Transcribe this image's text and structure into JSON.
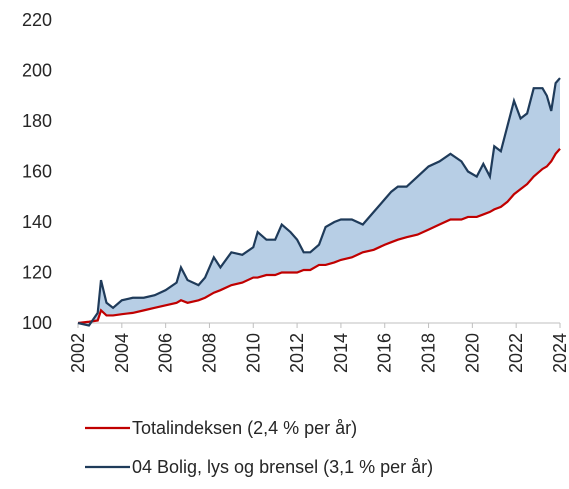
{
  "chart_data": {
    "type": "line",
    "x": [
      2002,
      2002.5,
      2002.9,
      2003.05,
      2003.3,
      2003.6,
      2004,
      2004.5,
      2005,
      2005.5,
      2006,
      2006.5,
      2006.7,
      2007,
      2007.5,
      2007.8,
      2008.2,
      2008.5,
      2009,
      2009.5,
      2010,
      2010.2,
      2010.6,
      2011,
      2011.3,
      2011.7,
      2012,
      2012.3,
      2012.6,
      2013,
      2013.3,
      2013.7,
      2014,
      2014.5,
      2015,
      2015.5,
      2016,
      2016.3,
      2016.6,
      2017,
      2017.5,
      2018,
      2018.5,
      2019,
      2019.5,
      2019.8,
      2020.2,
      2020.5,
      2020.8,
      2021,
      2021.3,
      2021.6,
      2021.9,
      2022.2,
      2022.5,
      2022.8,
      2023.2,
      2023.4,
      2023.6,
      2023.8,
      2024
    ],
    "series": [
      {
        "name": "Totalindeksen (2,4 % per år)",
        "color": "#c00000",
        "values": [
          100,
          100.5,
          101,
          105,
          103,
          103,
          103.5,
          104,
          105,
          106,
          107,
          108,
          109,
          108,
          109,
          110,
          112,
          113,
          115,
          116,
          118,
          118,
          119,
          119,
          120,
          120,
          120,
          121,
          121,
          123,
          123,
          124,
          125,
          126,
          128,
          129,
          131,
          132,
          133,
          134,
          135,
          137,
          139,
          141,
          141,
          142,
          142,
          143,
          144,
          145,
          146,
          148,
          151,
          153,
          155,
          158,
          161,
          162,
          164,
          167,
          169
        ]
      },
      {
        "name": "04 Bolig, lys og brensel (3,1 % per år)",
        "color": "#1f3b5a",
        "values": [
          100,
          99,
          104,
          117,
          108,
          106,
          109,
          110,
          110,
          111,
          113,
          116,
          122,
          117,
          115,
          118,
          126,
          122,
          128,
          127,
          130,
          136,
          133,
          133,
          139,
          136,
          133,
          128,
          128,
          131,
          138,
          140,
          141,
          141,
          139,
          144,
          149,
          152,
          154,
          154,
          158,
          162,
          164,
          167,
          164,
          160,
          158,
          163,
          158,
          170,
          168,
          178,
          188,
          181,
          183,
          193,
          193,
          190,
          184,
          195,
          197
        ]
      }
    ],
    "band_color": "#b7cee5",
    "xlim": [
      2002,
      2024
    ],
    "xticks": [
      2002,
      2004,
      2006,
      2008,
      2010,
      2012,
      2014,
      2016,
      2018,
      2020,
      2022,
      2024
    ],
    "ylim": [
      100,
      220
    ],
    "yticks": [
      100,
      120,
      140,
      160,
      180,
      200,
      220
    ],
    "grid": false
  }
}
